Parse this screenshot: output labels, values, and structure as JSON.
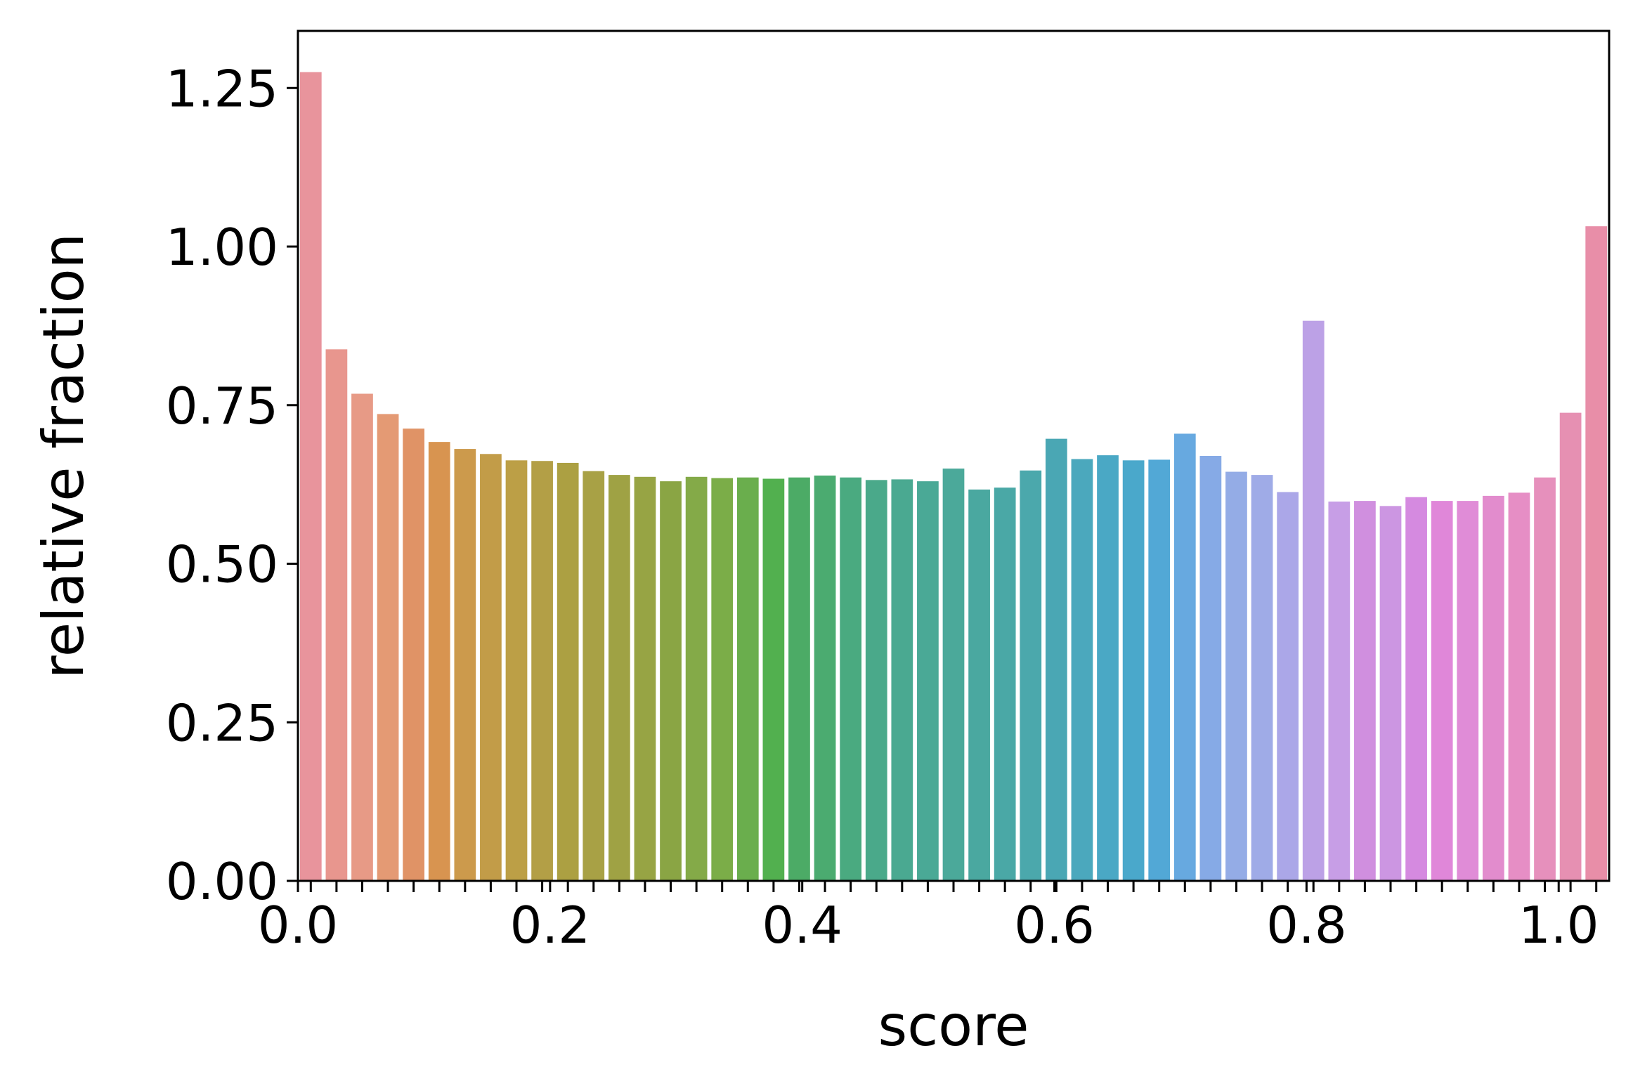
{
  "chart_data": {
    "type": "bar",
    "title": "",
    "xlabel": "score",
    "ylabel": "relative fraction",
    "ylim": [
      0,
      1.34
    ],
    "xlim": [
      0,
      1.04
    ],
    "yticks": [
      "0.00",
      "0.25",
      "0.50",
      "0.75",
      "1.00",
      "1.25"
    ],
    "xticks": [
      "0.0",
      "0.2",
      "0.4",
      "0.6",
      "0.8",
      "1.0"
    ],
    "grid": false,
    "legend": "none",
    "values": [
      1.275,
      0.838,
      0.768,
      0.736,
      0.713,
      0.692,
      0.681,
      0.673,
      0.663,
      0.662,
      0.659,
      0.646,
      0.64,
      0.637,
      0.63,
      0.637,
      0.635,
      0.636,
      0.634,
      0.636,
      0.639,
      0.636,
      0.632,
      0.633,
      0.63,
      0.65,
      0.617,
      0.62,
      0.647,
      0.697,
      0.665,
      0.671,
      0.663,
      0.664,
      0.705,
      0.67,
      0.645,
      0.64,
      0.613,
      0.883,
      0.598,
      0.599,
      0.591,
      0.605,
      0.599,
      0.599,
      0.607,
      0.612,
      0.636,
      0.738,
      1.032
    ],
    "colors": [
      "#e8949c",
      "#e8968e",
      "#e79a86",
      "#e49a74",
      "#e09366",
      "#d89450",
      "#cc9a4c",
      "#c29c48",
      "#bc9f46",
      "#b39f46",
      "#aca042",
      "#a8a145",
      "#9fa244",
      "#97a444",
      "#8aa544",
      "#84aa48",
      "#7bad48",
      "#6aae4d",
      "#52b04f",
      "#4cab66",
      "#4bab70",
      "#4aaa80",
      "#4aa98a",
      "#4aa991",
      "#4aa996",
      "#4ba99a",
      "#4aa8a0",
      "#4aa8a6",
      "#4ba8ac",
      "#4aa7b4",
      "#4ba8bd",
      "#4aa8c5",
      "#4aa8cb",
      "#52a8d6",
      "#67a9e0",
      "#86aae6",
      "#94ace6",
      "#9fabe7",
      "#aba7e8",
      "#bca1e6",
      "#c79ee6",
      "#d08fdf",
      "#cc96e2",
      "#d58ae0",
      "#e087d9",
      "#e08cd7",
      "#e28ccd",
      "#e68ec5",
      "#e690bc",
      "#e690b2",
      "#e88ea8"
    ]
  }
}
